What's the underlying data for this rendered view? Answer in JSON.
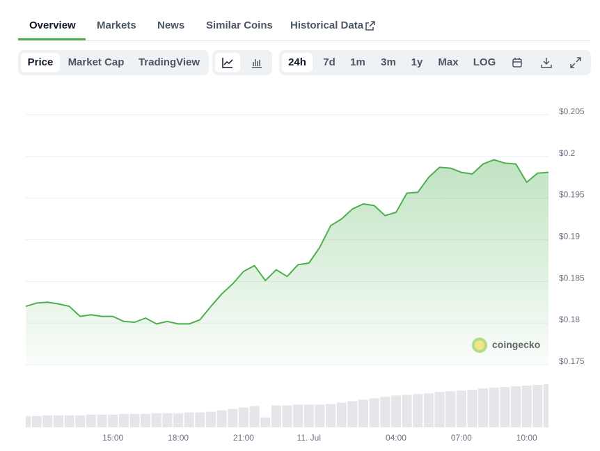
{
  "tabs": [
    "Overview",
    "Markets",
    "News",
    "Similar Coins",
    "Historical Data"
  ],
  "toolbar": {
    "views": [
      "Price",
      "Market Cap",
      "TradingView"
    ],
    "ranges": [
      "24h",
      "7d",
      "1m",
      "3m",
      "1y",
      "Max",
      "LOG"
    ]
  },
  "watermark": "coingecko",
  "chart_data": {
    "type": "line",
    "categories": [
      null,
      null,
      null,
      null,
      null,
      null,
      null,
      null,
      "15:00",
      null,
      null,
      null,
      null,
      null,
      "18:00",
      null,
      null,
      null,
      null,
      null,
      "21:00",
      null,
      null,
      null,
      null,
      null,
      "11. Jul",
      null,
      null,
      null,
      null,
      null,
      null,
      null,
      "04:00",
      null,
      null,
      null,
      null,
      null,
      "07:00",
      null,
      null,
      null,
      null,
      null,
      "10:00",
      null,
      null
    ],
    "series": [
      {
        "name": "Price",
        "color": "#4caf50",
        "values": [
          0.182,
          0.1824,
          0.1825,
          0.1823,
          0.182,
          0.1808,
          0.181,
          0.1808,
          0.1808,
          0.1802,
          0.1801,
          0.1806,
          0.1799,
          0.1802,
          0.1799,
          0.1799,
          0.1804,
          0.182,
          0.1835,
          0.1847,
          0.1862,
          0.1869,
          0.1851,
          0.1864,
          0.1856,
          0.187,
          0.1872,
          0.1891,
          0.1917,
          0.1925,
          0.1937,
          0.1943,
          0.1941,
          0.1929,
          0.1933,
          0.1956,
          0.1957,
          0.1975,
          0.1987,
          0.1986,
          0.1981,
          0.1979,
          0.1991,
          0.1996,
          0.1992,
          0.1991,
          0.1969,
          0.198,
          0.1981
        ]
      }
    ],
    "volume": [
      16,
      16,
      17,
      17,
      17,
      17,
      18,
      18,
      18,
      19,
      19,
      19,
      20,
      20,
      20,
      21,
      21,
      22,
      24,
      26,
      28,
      30,
      14,
      31,
      31,
      32,
      32,
      32,
      33,
      35,
      37,
      39,
      41,
      43,
      45,
      46,
      47,
      48,
      50,
      51,
      52,
      53,
      55,
      56,
      57,
      58,
      59,
      60,
      61
    ],
    "ylim": [
      0.175,
      0.205
    ],
    "yticks": [
      {
        "value": 0.175,
        "label": "$0.175"
      },
      {
        "value": 0.18,
        "label": "$0.18"
      },
      {
        "value": 0.185,
        "label": "$0.185"
      },
      {
        "value": 0.19,
        "label": "$0.19"
      },
      {
        "value": 0.195,
        "label": "$0.195"
      },
      {
        "value": 0.2,
        "label": "$0.2"
      },
      {
        "value": 0.205,
        "label": "$0.205"
      }
    ],
    "grid": true
  }
}
